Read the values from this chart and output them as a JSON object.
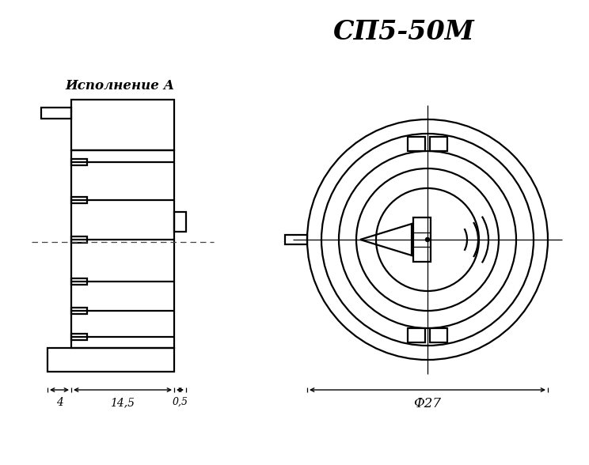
{
  "title": "СП5-50М",
  "label": "Исполнение А",
  "dim1": "4",
  "dim2": "14,5",
  "dim3": "0,5",
  "dim4": "Ф27",
  "bg": "#ffffff",
  "lc": "#000000",
  "lw": 1.6,
  "lw_thin": 0.9
}
